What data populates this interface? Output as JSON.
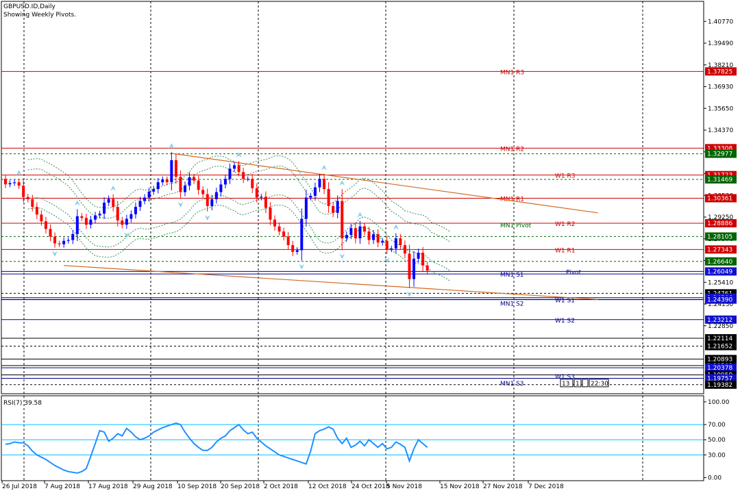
{
  "header": {
    "symbol_line": "GBPUSD.ID,Daily",
    "indicator_line": "Showing Weekly Pivots."
  },
  "colors": {
    "bull": "#0000ff",
    "bear": "#ff0000",
    "resistance": "#cc0000",
    "support": "#00008b",
    "pivot_line": "#006400",
    "trend": "#d2691e",
    "envelope": "#2e8b57",
    "fractal": "#87ceeb",
    "rsi": "#1e90ff",
    "rsi_levels": "#00bfff"
  },
  "chart_data": [
    {
      "type": "candlestick",
      "title": "GBPUSD.ID,Daily",
      "subtitle": "Showing Weekly Pivots.",
      "ylim": [
        1.1885,
        1.4195
      ],
      "y_ticks": [
        1.4077,
        1.3949,
        1.3821,
        1.3693,
        1.3565,
        1.3437,
        1.3309,
        1.3181,
        1.3053,
        1.2925,
        1.2797,
        1.2669,
        1.2541,
        1.2413,
        1.2285
      ],
      "x_labels": [
        "26 Jul 2018",
        "7 Aug 2018",
        "17 Aug 2018",
        "29 Aug 2018",
        "10 Sep 2018",
        "20 Sep 2018",
        "2 Oct 2018",
        "12 Oct 2018",
        "24 Oct 2018",
        "5 Nov 2018",
        "15 Nov 2018",
        "27 Nov 2018",
        "7 Dec 2018"
      ],
      "close_start": 1.315,
      "closes": [
        1.3118,
        1.3125,
        1.313,
        1.311,
        1.3043,
        1.303,
        1.2985,
        1.294,
        1.29,
        1.2855,
        1.281,
        1.277,
        1.2765,
        1.2785,
        1.279,
        1.2825,
        1.293,
        1.292,
        1.288,
        1.291,
        1.2935,
        1.2945,
        1.301,
        1.3032,
        1.2985,
        1.2905,
        1.288,
        1.2915,
        1.2942,
        1.2985,
        1.302,
        1.304,
        1.3075,
        1.309,
        1.313,
        1.3145,
        1.313,
        1.326,
        1.3162,
        1.3072,
        1.311,
        1.316,
        1.314,
        1.3085,
        1.306,
        1.299,
        1.303,
        1.3072,
        1.3117,
        1.315,
        1.321,
        1.323,
        1.319,
        1.315,
        1.315,
        1.3095,
        1.304,
        1.3045,
        1.298,
        1.291,
        1.287,
        1.284,
        1.281,
        1.276,
        1.272,
        1.273,
        1.2915,
        1.304,
        1.305,
        1.31,
        1.315,
        1.309,
        1.299,
        1.295,
        1.302,
        1.28,
        1.282,
        1.286,
        1.28,
        1.287,
        1.284,
        1.279,
        1.2825,
        1.2775,
        1.2785,
        1.2735,
        1.274,
        1.28,
        1.276,
        1.271,
        1.256,
        1.268,
        1.2715,
        1.264,
        1.261
      ],
      "candle_count_note": "",
      "levels": [
        {
          "name": "MN1 R3",
          "label": "MN1 R3",
          "value": 1.37825,
          "price_text": "1.37825",
          "kind": "resistance"
        },
        {
          "name": "MN1 R2",
          "label": "MN1 R2",
          "value": 1.33308,
          "price_text": "1.33308",
          "kind": "resistance"
        },
        {
          "name": "level-1.32977",
          "label": "",
          "value": 1.32977,
          "price_text": "1.32977",
          "kind": "support-dash"
        },
        {
          "name": "W1 R3",
          "label": "W1 R3",
          "value": 1.31723,
          "price_text": "1.31723",
          "kind": "resistance"
        },
        {
          "name": "level-1.31469",
          "label": "",
          "value": 1.31469,
          "price_text": "1.31469",
          "kind": "support-dash"
        },
        {
          "name": "MN1 R1",
          "label": "MN1 R1",
          "value": 1.30361,
          "price_text": "1.30361",
          "kind": "resistance"
        },
        {
          "name": "W1 R2",
          "label": "W1 R2",
          "value": 1.28886,
          "price_text": "1.28886",
          "kind": "resistance"
        },
        {
          "name": "MN1 Pivot",
          "label": "MN1 Pivot",
          "value": 1.288,
          "price_text": "",
          "kind": "pivot"
        },
        {
          "name": "level-1.28105",
          "label": "",
          "value": 1.28105,
          "price_text": "1.28105",
          "kind": "support-dash"
        },
        {
          "name": "W1 R1",
          "label": "W1 R1",
          "value": 1.27343,
          "price_text": "1.27343",
          "kind": "resistance"
        },
        {
          "name": "level-1.26640",
          "label": "",
          "value": 1.2664,
          "price_text": "1.26640",
          "kind": "support-dash"
        },
        {
          "name": "W1 Pivot",
          "label": "Pivot",
          "value": 1.26049,
          "price_text": "1.26049",
          "kind": "support"
        },
        {
          "name": "MN1 S1",
          "label": "MN1 S1",
          "value": 1.259,
          "price_text": "",
          "kind": "support"
        },
        {
          "name": "level-1.24761",
          "label": "",
          "value": 1.24761,
          "price_text": "1.24761",
          "kind": "black-dash"
        },
        {
          "name": "level-1.24506",
          "label": "",
          "value": 1.24506,
          "price_text": "1.24506",
          "kind": "support"
        },
        {
          "name": "W1 S1",
          "label": "W1 S1",
          "value": 1.244,
          "price_text": "",
          "kind": "support"
        },
        {
          "name": "level-1.24390",
          "label": "",
          "value": 1.2439,
          "price_text": "1.24390",
          "kind": "support"
        },
        {
          "name": "MN1 S2",
          "label": "MN1 S2",
          "value": 1.242,
          "price_text": "",
          "kind": "none"
        },
        {
          "name": "W1 S2",
          "label": "W1 S2",
          "value": 1.23212,
          "price_text": "1.23212",
          "kind": "support"
        },
        {
          "name": "level-1.22114",
          "label": "",
          "value": 1.22114,
          "price_text": "1.22114",
          "kind": "black"
        },
        {
          "name": "level-1.21652",
          "label": "",
          "value": 1.21652,
          "price_text": "1.21652",
          "kind": "black-dash"
        },
        {
          "name": "level-1.20893",
          "label": "",
          "value": 1.20893,
          "price_text": "1.20893",
          "kind": "black"
        },
        {
          "name": "level-1.20509",
          "label": "",
          "value": 1.20509,
          "price_text": "1.20509",
          "kind": "black"
        },
        {
          "name": "level-1.20378",
          "label": "",
          "value": 1.20378,
          "price_text": "1.20378",
          "kind": "support"
        },
        {
          "name": "level-1.19959",
          "label": "",
          "value": 1.19959,
          "price_text": "1.19959",
          "kind": "black"
        },
        {
          "name": "W1 S3",
          "label": "W1 S3",
          "value": 1.199,
          "price_text": "",
          "kind": "none"
        },
        {
          "name": "level-1.19757",
          "label": "",
          "value": 1.19757,
          "price_text": "1.19757",
          "kind": "support"
        },
        {
          "name": "MN1 S3",
          "label": "MN1 S3",
          "value": 1.195,
          "price_text": "",
          "kind": "none"
        },
        {
          "name": "level-1.19382",
          "label": "",
          "value": 1.19382,
          "price_text": "1.19382",
          "kind": "black-dash"
        }
      ],
      "trendlines": [
        {
          "name": "upper-trendline",
          "from": {
            "index": 37,
            "price": 1.33
          },
          "to": {
            "index": 132,
            "price": 1.295
          }
        },
        {
          "name": "lower-trendline",
          "from": {
            "index": 13,
            "price": 1.264
          },
          "to": {
            "index": 132,
            "price": 1.244
          }
        }
      ],
      "clock_text": [
        "13",
        "1",
        "",
        "22:30"
      ]
    },
    {
      "type": "line",
      "title": "RSI(7) 39.58",
      "ylim": [
        -4,
        108
      ],
      "y_ticks": [
        100.0,
        70.0,
        50.0,
        30.0,
        0.0
      ],
      "levels": [
        70,
        50,
        30
      ],
      "values": [
        44,
        45,
        47,
        46,
        46,
        42,
        35,
        30,
        27,
        24,
        20,
        16,
        13,
        10,
        8,
        7,
        6,
        8,
        12,
        28,
        45,
        62,
        60,
        48,
        52,
        58,
        55,
        65,
        60,
        54,
        50,
        52,
        55,
        60,
        63,
        66,
        68,
        70,
        72,
        70,
        60,
        52,
        45,
        40,
        36,
        36,
        40,
        47,
        52,
        55,
        62,
        66,
        70,
        63,
        58,
        60,
        52,
        47,
        42,
        38,
        34,
        30,
        28,
        26,
        24,
        22,
        20,
        18,
        35,
        58,
        62,
        64,
        67,
        64,
        52,
        45,
        52,
        40,
        43,
        48,
        42,
        50,
        45,
        40,
        45,
        38,
        40,
        47,
        44,
        40,
        22,
        38,
        50,
        45,
        40
      ]
    }
  ]
}
